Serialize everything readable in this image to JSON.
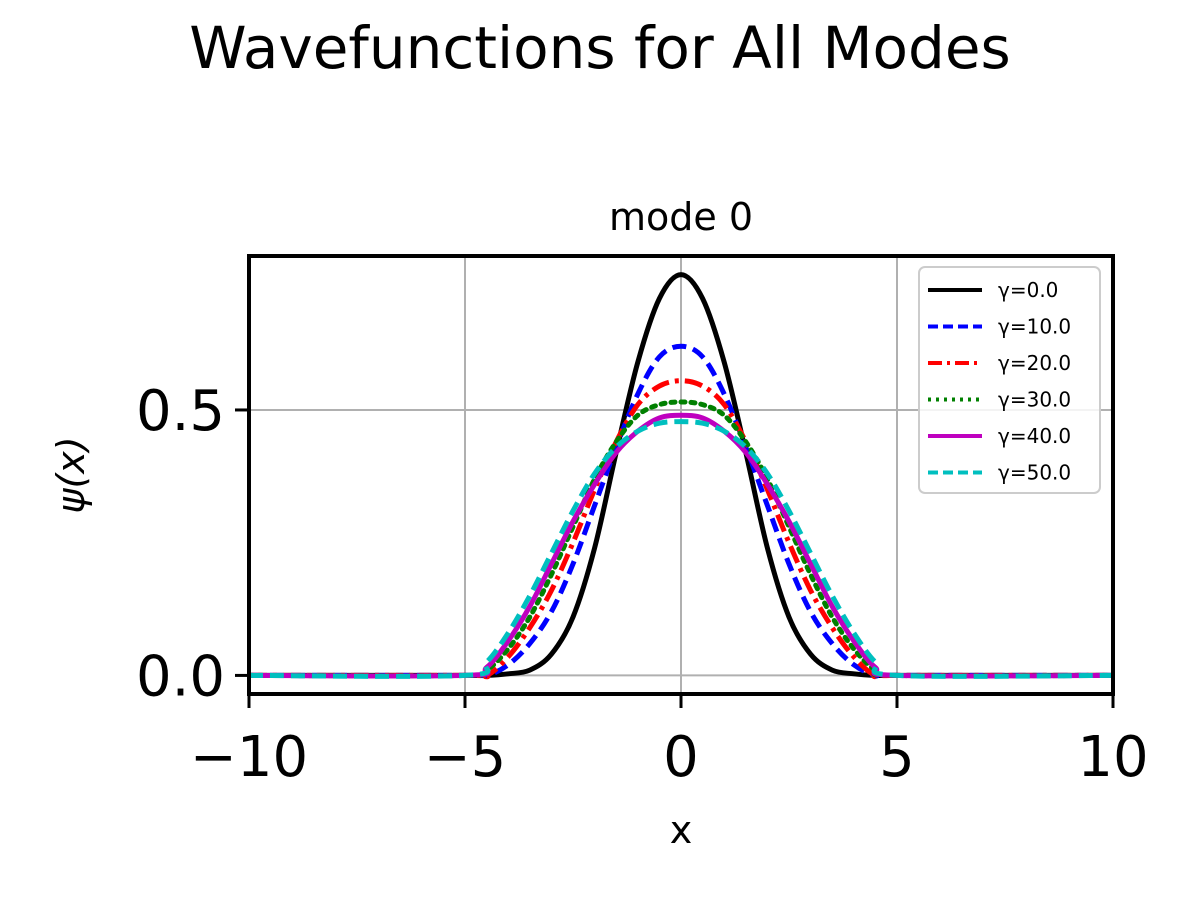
{
  "figure": {
    "suptitle": "Wavefunctions for All Modes"
  },
  "chart_data": {
    "type": "line",
    "title": "mode 0",
    "xlabel": "x",
    "ylabel": "ψ(x)",
    "xlim": [
      -10,
      10
    ],
    "ylim": [
      -0.035,
      0.79
    ],
    "x_ticks": [
      -10,
      -5,
      0,
      5,
      10
    ],
    "x_tick_labels": [
      "−10",
      "−5",
      "0",
      "5",
      "10"
    ],
    "y_ticks": [
      0.0,
      0.5
    ],
    "y_tick_labels": [
      "0.0",
      "0.5"
    ],
    "grid": true,
    "legend_position": "top-right",
    "series": [
      {
        "name": "γ=0.0",
        "color": "#000000",
        "style": "solid",
        "x": [
          -10,
          -5,
          -4.5,
          -4,
          -3.5,
          -3,
          -2.5,
          -2,
          -1.5,
          -1,
          -0.5,
          0,
          0.5,
          1,
          1.5,
          2,
          2.5,
          3,
          3.5,
          4,
          4.5,
          5,
          10
        ],
        "y": [
          0,
          0,
          0,
          0.003,
          0.01,
          0.04,
          0.11,
          0.24,
          0.42,
          0.59,
          0.71,
          0.755,
          0.71,
          0.59,
          0.42,
          0.24,
          0.11,
          0.04,
          0.01,
          0.003,
          0,
          0,
          0
        ]
      },
      {
        "name": "γ=10.0",
        "color": "#0000ff",
        "style": "dashed",
        "x": [
          -10,
          -5,
          -4.5,
          -4,
          -3.5,
          -3,
          -2.5,
          -2,
          -1.5,
          -1,
          -0.5,
          0,
          0.5,
          1,
          1.5,
          2,
          2.5,
          3,
          3.5,
          4,
          4.5,
          5,
          10
        ],
        "y": [
          0,
          0,
          0,
          0.02,
          0.06,
          0.12,
          0.21,
          0.32,
          0.43,
          0.53,
          0.6,
          0.62,
          0.6,
          0.53,
          0.43,
          0.32,
          0.21,
          0.12,
          0.06,
          0.02,
          0,
          0,
          0
        ]
      },
      {
        "name": "γ=20.0",
        "color": "#ff0000",
        "style": "dashdot",
        "x": [
          -10,
          -5,
          -4.5,
          -4,
          -3.5,
          -3,
          -2.5,
          -2,
          -1.5,
          -1,
          -0.5,
          0,
          0.5,
          1,
          1.5,
          2,
          2.5,
          3,
          3.5,
          4,
          4.5,
          5,
          10
        ],
        "y": [
          0,
          0,
          0,
          0.035,
          0.09,
          0.16,
          0.25,
          0.35,
          0.44,
          0.51,
          0.545,
          0.555,
          0.545,
          0.51,
          0.44,
          0.35,
          0.25,
          0.16,
          0.09,
          0.035,
          0,
          0,
          0
        ]
      },
      {
        "name": "γ=30.0",
        "color": "#008000",
        "style": "dotted",
        "x": [
          -10,
          -5,
          -4.5,
          -4,
          -3.5,
          -3,
          -2.5,
          -2,
          -1.5,
          -1,
          -0.5,
          0,
          0.5,
          1,
          1.5,
          2,
          2.5,
          3,
          3.5,
          4,
          4.5,
          5,
          10
        ],
        "y": [
          0,
          0,
          0.01,
          0.05,
          0.11,
          0.19,
          0.28,
          0.37,
          0.44,
          0.49,
          0.51,
          0.515,
          0.51,
          0.49,
          0.44,
          0.37,
          0.28,
          0.19,
          0.11,
          0.05,
          0.01,
          0,
          0
        ]
      },
      {
        "name": "γ=40.0",
        "color": "#bf00bf",
        "style": "solid",
        "x": [
          -10,
          -5,
          -4.5,
          -4,
          -3.5,
          -3,
          -2.5,
          -2,
          -1.5,
          -1,
          -0.5,
          0,
          0.5,
          1,
          1.5,
          2,
          2.5,
          3,
          3.5,
          4,
          4.5,
          5,
          10
        ],
        "y": [
          0,
          0,
          0.015,
          0.065,
          0.13,
          0.21,
          0.29,
          0.36,
          0.42,
          0.46,
          0.485,
          0.49,
          0.485,
          0.46,
          0.42,
          0.36,
          0.29,
          0.21,
          0.13,
          0.065,
          0.015,
          0,
          0
        ]
      },
      {
        "name": "γ=50.0",
        "color": "#00bfbf",
        "style": "dashed",
        "x": [
          -10,
          -5,
          -4.5,
          -4,
          -3.5,
          -3,
          -2.5,
          -2,
          -1.5,
          -1,
          -0.5,
          0,
          0.5,
          1,
          1.5,
          2,
          2.5,
          3,
          3.5,
          4,
          4.5,
          5,
          10
        ],
        "y": [
          0,
          0,
          0.025,
          0.08,
          0.15,
          0.23,
          0.31,
          0.38,
          0.43,
          0.46,
          0.475,
          0.478,
          0.475,
          0.46,
          0.43,
          0.38,
          0.31,
          0.23,
          0.15,
          0.08,
          0.025,
          0,
          0
        ]
      }
    ]
  }
}
